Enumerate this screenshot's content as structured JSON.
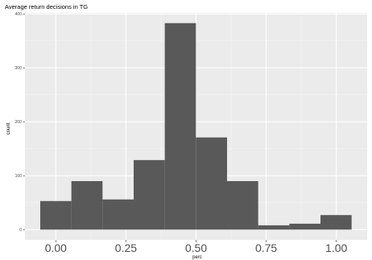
{
  "chart_data": {
    "type": "bar",
    "title": "Average return decisions in TG",
    "xlabel": "perc",
    "ylabel": "count",
    "bin_width": 0.111,
    "bins": [
      {
        "x0": -0.0555,
        "x1": 0.0555,
        "count": 53
      },
      {
        "x0": 0.0555,
        "x1": 0.1665,
        "count": 90
      },
      {
        "x0": 0.1665,
        "x1": 0.2775,
        "count": 56
      },
      {
        "x0": 0.2775,
        "x1": 0.3885,
        "count": 129
      },
      {
        "x0": 0.3885,
        "x1": 0.4995,
        "count": 383
      },
      {
        "x0": 0.4995,
        "x1": 0.6105,
        "count": 171
      },
      {
        "x0": 0.6105,
        "x1": 0.7215,
        "count": 90
      },
      {
        "x0": 0.7215,
        "x1": 0.8325,
        "count": 8
      },
      {
        "x0": 0.8325,
        "x1": 0.9435,
        "count": 11
      },
      {
        "x0": 0.9435,
        "x1": 1.0545,
        "count": 27
      }
    ],
    "xticks": [
      {
        "value": 0.0,
        "label": "0.00"
      },
      {
        "value": 0.25,
        "label": "0.25"
      },
      {
        "value": 0.5,
        "label": "0.50"
      },
      {
        "value": 0.75,
        "label": "0.75"
      },
      {
        "value": 1.0,
        "label": "1.00"
      }
    ],
    "yticks": [
      {
        "value": 0,
        "label": "0"
      },
      {
        "value": 100,
        "label": "100"
      },
      {
        "value": 200,
        "label": "200"
      },
      {
        "value": 300,
        "label": "300"
      },
      {
        "value": 400,
        "label": "400"
      }
    ],
    "xlim": [
      -0.11,
      1.11
    ],
    "ylim": [
      -19,
      402
    ],
    "grid": true,
    "colors": {
      "panel": "#ebebeb",
      "grid_major": "#ffffff",
      "grid_minor": "#f5f5f5",
      "bar": "#595959"
    }
  }
}
